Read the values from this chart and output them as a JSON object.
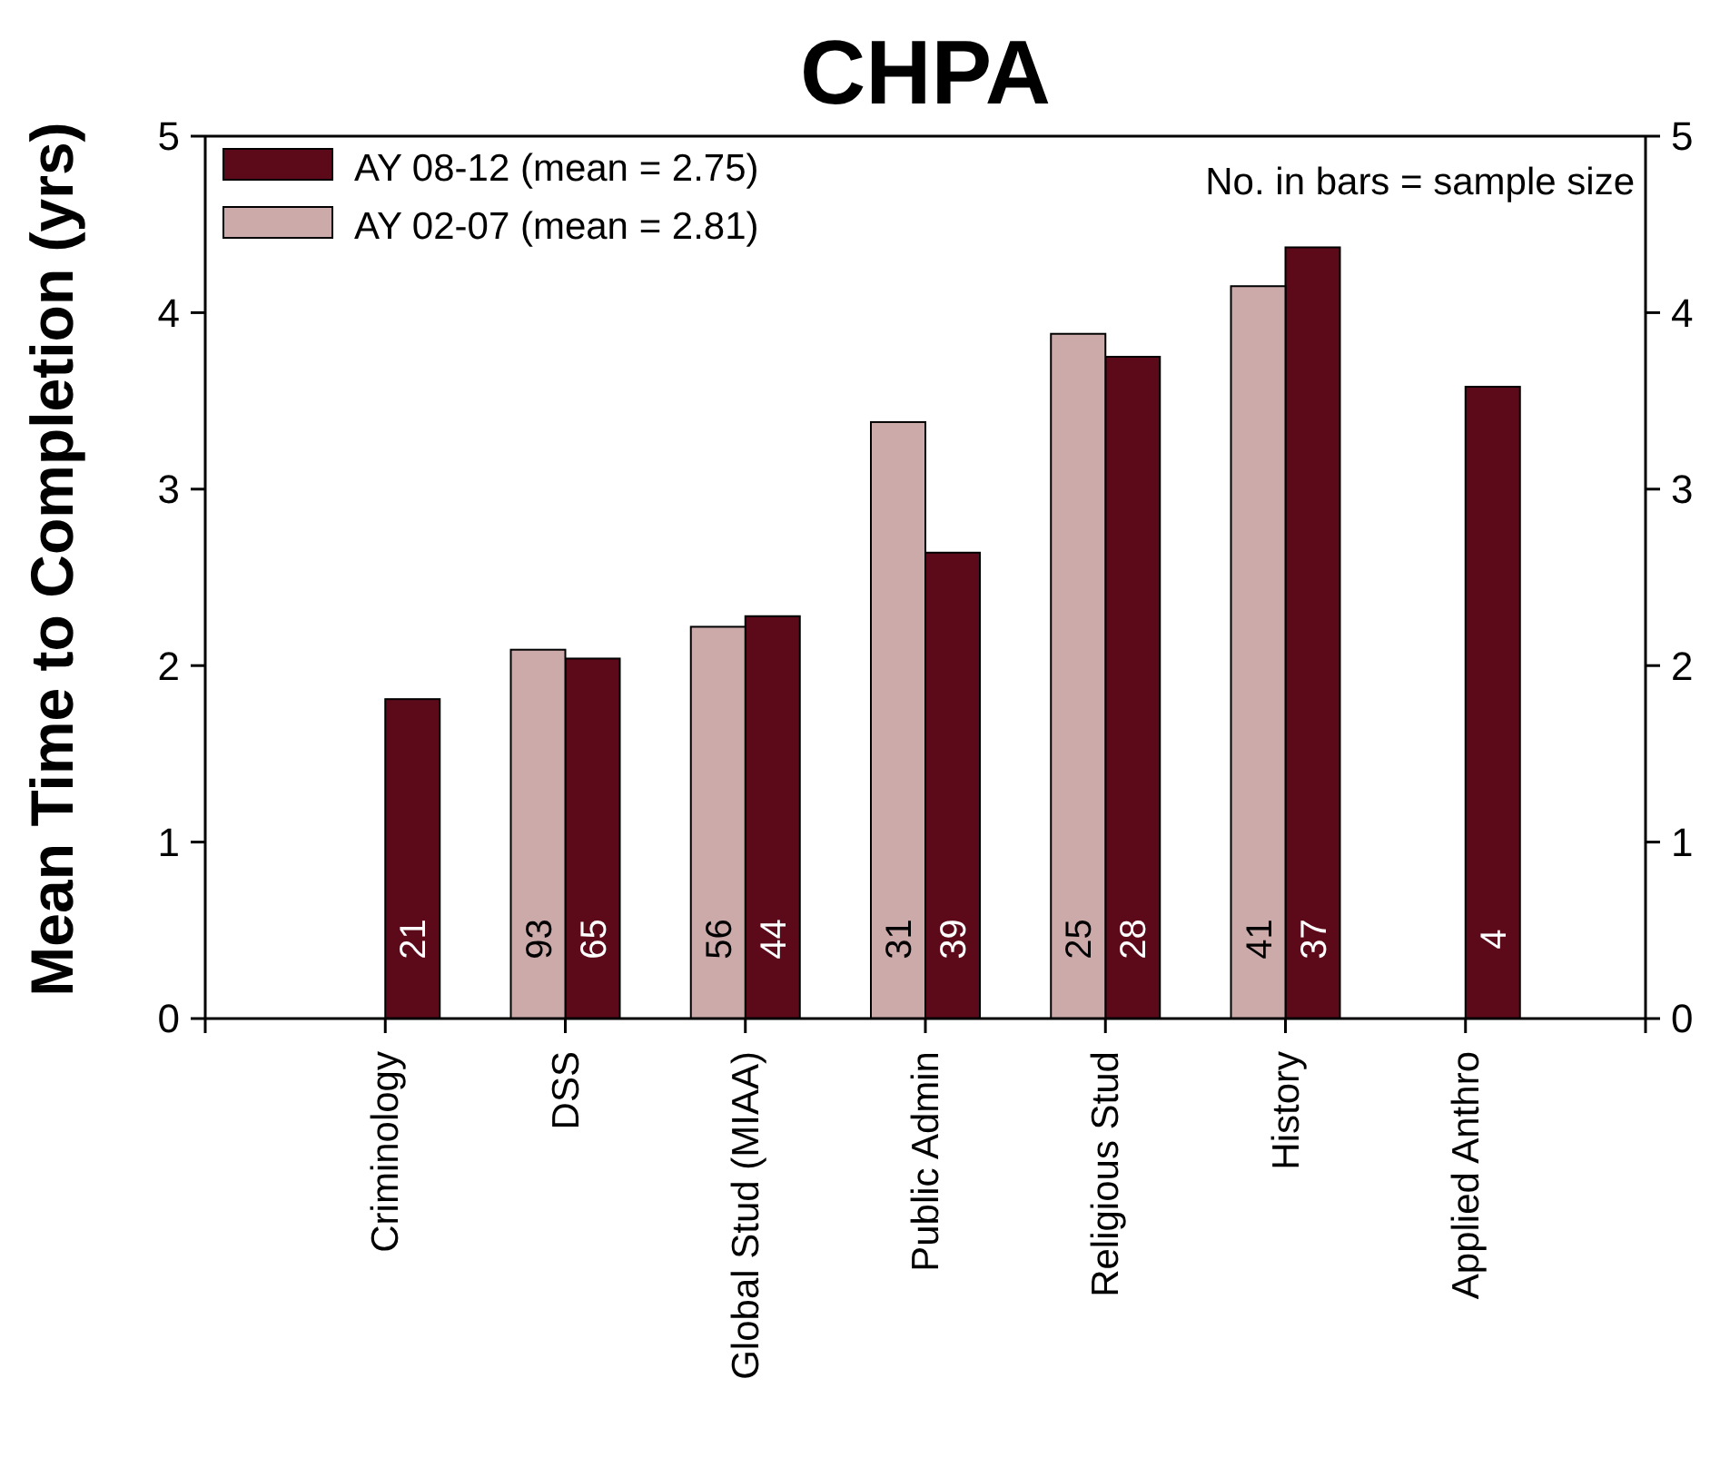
{
  "chart_data": {
    "type": "bar",
    "title": "CHPA",
    "ylabel": "Mean Time to Completion (yrs)",
    "categories": [
      "Criminology",
      "DSS",
      "Global Stud (MIAA)",
      "Public Admin",
      "Religious Stud",
      "History",
      "Applied Anthro"
    ],
    "series": [
      {
        "name": "AY 08-12 (mean = 2.75)",
        "color": "#5c0a1a",
        "values": [
          1.81,
          2.04,
          2.28,
          2.64,
          3.75,
          4.37,
          3.58
        ]
      },
      {
        "name": "AY 02-07 (mean = 2.81)",
        "color": "#ccaaaa",
        "values": [
          null,
          2.09,
          2.22,
          3.38,
          3.88,
          4.15,
          null
        ]
      }
    ],
    "ylim": [
      0,
      5
    ],
    "yticks": [
      0,
      1,
      2,
      3,
      4,
      5
    ],
    "y2lim": [
      0,
      5
    ],
    "y2ticks": [
      0,
      1,
      2,
      3,
      4,
      5
    ],
    "legend": "top left",
    "annotations": [
      "No. in bars = sample size",
      {
        "text": "21",
        "x": "Criminology",
        "y": 0.45
      },
      {
        "text": "93",
        "x": "DSS",
        "y": 0.45
      },
      {
        "text": "65",
        "x": "DSS",
        "y": 0.45
      },
      {
        "text": "56",
        "x": "Global Stud (MIAA)",
        "y": 0.45
      },
      {
        "text": "44",
        "x": "Global Stud (MIAA)",
        "y": 0.45
      },
      {
        "text": "31",
        "x": "Public Admin",
        "y": 0.45
      },
      {
        "text": "39",
        "x": "Public Admin",
        "y": 0.45
      },
      {
        "text": "25",
        "x": "Religious Stud",
        "y": 0.45
      },
      {
        "text": "28",
        "x": "Religious Stud",
        "y": 0.45
      },
      {
        "text": "41",
        "x": "History",
        "y": 0.45
      },
      {
        "text": "37",
        "x": "History",
        "y": 0.45
      },
      {
        "text": "4",
        "x": "Applied Anthro",
        "y": 0.45
      }
    ]
  }
}
